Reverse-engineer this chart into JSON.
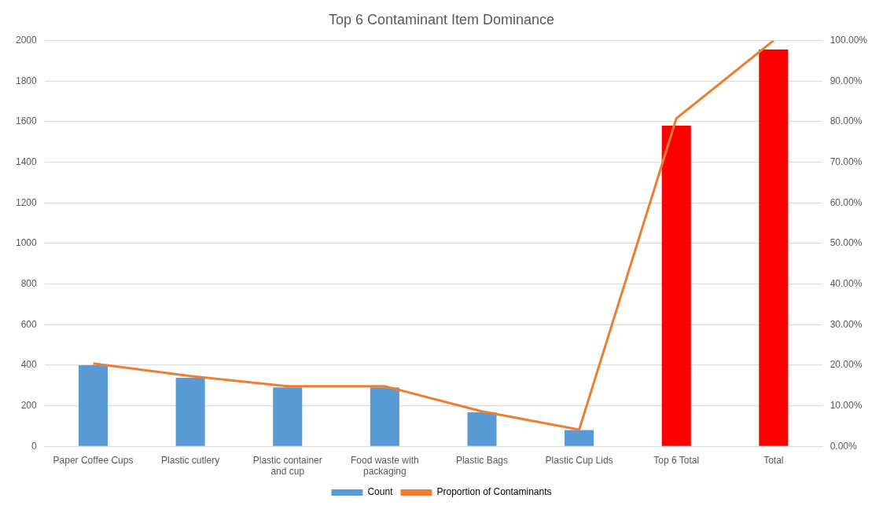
{
  "chart_data": {
    "type": "bar",
    "title": "Top 6 Contaminant Item Dominance",
    "categories": [
      "Paper Coffee Cups",
      "Plastic cutlery",
      "Plastic container and cup",
      "Food waste with packaging",
      "Plastic Bags",
      "Plastic Cup Lids",
      "Top 6 Total",
      "Total"
    ],
    "series": [
      {
        "name": "Count",
        "color": "#5b9bd5",
        "colors": [
          "#5b9bd5",
          "#5b9bd5",
          "#5b9bd5",
          "#5b9bd5",
          "#5b9bd5",
          "#5b9bd5",
          "#ff0000",
          "#ff0000"
        ],
        "values": [
          400,
          338,
          290,
          290,
          168,
          80,
          1580,
          1956
        ]
      },
      {
        "name": "Proportion of Contaminants",
        "type": "line",
        "axis": "y2",
        "color": "#ed7d31",
        "marker": "none",
        "values": [
          20.4,
          17.3,
          14.8,
          14.8,
          8.6,
          4.1,
          80.8,
          100
        ]
      }
    ],
    "ylim": [
      0,
      2000
    ],
    "yticks": [
      0,
      200,
      400,
      600,
      800,
      1000,
      1200,
      1400,
      1600,
      1800,
      2000
    ],
    "y2lim": [
      0,
      100
    ],
    "y2ticks": [
      {
        "value": 0,
        "label": "0.00%"
      },
      {
        "value": 10,
        "label": "10.00%"
      },
      {
        "value": 20,
        "label": "20.00%"
      },
      {
        "value": 30,
        "label": "30.00%"
      },
      {
        "value": 40,
        "label": "40.00%"
      },
      {
        "value": 50,
        "label": "50.00%"
      },
      {
        "value": 60,
        "label": "60.00%"
      },
      {
        "value": 70,
        "label": "70.00%"
      },
      {
        "value": 80,
        "label": "80.00%"
      },
      {
        "value": 90,
        "label": "90.00%"
      },
      {
        "value": 100,
        "label": "100.00%"
      }
    ],
    "grid": "y",
    "legend": "bottom"
  }
}
